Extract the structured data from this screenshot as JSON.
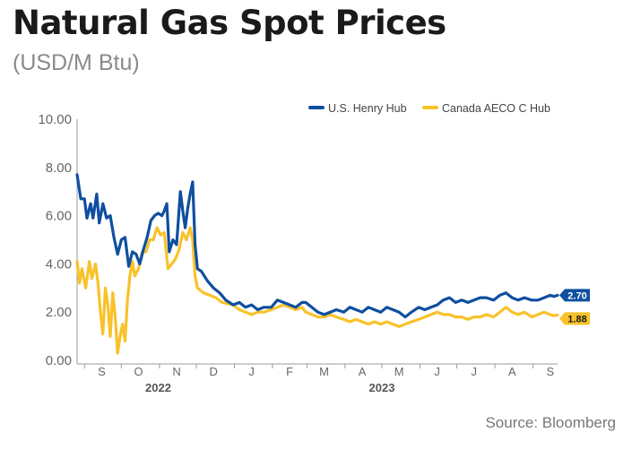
{
  "chart_data": {
    "type": "line",
    "title": "Natural Gas Spot Prices",
    "subtitle": "(USD/M Btu)",
    "source": "Source: Bloomberg",
    "ylim": [
      0,
      10
    ],
    "yticks": [
      "0.00",
      "2.00",
      "4.00",
      "6.00",
      "8.00",
      "10.00"
    ],
    "grid": false,
    "legend_position": "top-right",
    "months": [
      "S",
      "O",
      "N",
      "D",
      "J",
      "F",
      "M",
      "A",
      "M",
      "J",
      "J",
      "A",
      "S"
    ],
    "years": [
      "2022",
      "2023"
    ],
    "series": [
      {
        "name": "U.S. Henry Hub",
        "color": "#0f4fa0",
        "last_label": "2.70",
        "points": [
          [
            "2022-08-26",
            7.7
          ],
          [
            "2022-08-29",
            6.7
          ],
          [
            "2022-09-01",
            6.7
          ],
          [
            "2022-09-03",
            5.9
          ],
          [
            "2022-09-06",
            6.5
          ],
          [
            "2022-09-08",
            5.9
          ],
          [
            "2022-09-11",
            6.9
          ],
          [
            "2022-09-13",
            5.7
          ],
          [
            "2022-09-16",
            6.5
          ],
          [
            "2022-09-19",
            5.9
          ],
          [
            "2022-09-22",
            6.0
          ],
          [
            "2022-09-25",
            5.1
          ],
          [
            "2022-09-28",
            4.4
          ],
          [
            "2022-10-01",
            5.0
          ],
          [
            "2022-10-04",
            5.1
          ],
          [
            "2022-10-07",
            3.9
          ],
          [
            "2022-10-10",
            4.5
          ],
          [
            "2022-10-13",
            4.4
          ],
          [
            "2022-10-16",
            4.0
          ],
          [
            "2022-10-19",
            4.6
          ],
          [
            "2022-10-22",
            5.1
          ],
          [
            "2022-10-25",
            5.8
          ],
          [
            "2022-10-28",
            6.0
          ],
          [
            "2022-10-31",
            6.1
          ],
          [
            "2022-11-03",
            6.0
          ],
          [
            "2022-11-05",
            6.2
          ],
          [
            "2022-11-07",
            6.5
          ],
          [
            "2022-11-09",
            4.5
          ],
          [
            "2022-11-12",
            5.0
          ],
          [
            "2022-11-15",
            4.8
          ],
          [
            "2022-11-18",
            7.0
          ],
          [
            "2022-11-20",
            6.2
          ],
          [
            "2022-11-22",
            5.5
          ],
          [
            "2022-11-24",
            6.3
          ],
          [
            "2022-11-26",
            6.9
          ],
          [
            "2022-11-28",
            7.4
          ],
          [
            "2022-11-30",
            4.8
          ],
          [
            "2022-12-02",
            3.8
          ],
          [
            "2022-12-05",
            3.7
          ],
          [
            "2022-12-10",
            3.3
          ],
          [
            "2022-12-15",
            3.0
          ],
          [
            "2022-12-20",
            2.8
          ],
          [
            "2022-12-25",
            2.5
          ],
          [
            "2022-12-31",
            2.3
          ],
          [
            "2023-01-05",
            2.4
          ],
          [
            "2023-01-10",
            2.2
          ],
          [
            "2023-01-15",
            2.3
          ],
          [
            "2023-01-20",
            2.1
          ],
          [
            "2023-01-25",
            2.2
          ],
          [
            "2023-01-31",
            2.2
          ],
          [
            "2023-02-05",
            2.5
          ],
          [
            "2023-02-10",
            2.4
          ],
          [
            "2023-02-15",
            2.3
          ],
          [
            "2023-02-20",
            2.2
          ],
          [
            "2023-02-25",
            2.4
          ],
          [
            "2023-02-28",
            2.4
          ],
          [
            "2023-03-05",
            2.2
          ],
          [
            "2023-03-10",
            2.0
          ],
          [
            "2023-03-15",
            1.9
          ],
          [
            "2023-03-20",
            2.0
          ],
          [
            "2023-03-25",
            2.1
          ],
          [
            "2023-03-31",
            2.0
          ],
          [
            "2023-04-05",
            2.2
          ],
          [
            "2023-04-10",
            2.1
          ],
          [
            "2023-04-15",
            2.0
          ],
          [
            "2023-04-20",
            2.2
          ],
          [
            "2023-04-25",
            2.1
          ],
          [
            "2023-04-30",
            2.0
          ],
          [
            "2023-05-05",
            2.2
          ],
          [
            "2023-05-10",
            2.1
          ],
          [
            "2023-05-15",
            2.0
          ],
          [
            "2023-05-20",
            1.8
          ],
          [
            "2023-05-25",
            2.0
          ],
          [
            "2023-05-31",
            2.2
          ],
          [
            "2023-06-05",
            2.1
          ],
          [
            "2023-06-10",
            2.2
          ],
          [
            "2023-06-15",
            2.3
          ],
          [
            "2023-06-20",
            2.5
          ],
          [
            "2023-06-25",
            2.6
          ],
          [
            "2023-06-30",
            2.4
          ],
          [
            "2023-07-05",
            2.5
          ],
          [
            "2023-07-10",
            2.4
          ],
          [
            "2023-07-15",
            2.5
          ],
          [
            "2023-07-20",
            2.6
          ],
          [
            "2023-07-25",
            2.6
          ],
          [
            "2023-07-31",
            2.5
          ],
          [
            "2023-08-05",
            2.7
          ],
          [
            "2023-08-10",
            2.8
          ],
          [
            "2023-08-15",
            2.6
          ],
          [
            "2023-08-20",
            2.5
          ],
          [
            "2023-08-25",
            2.6
          ],
          [
            "2023-08-31",
            2.5
          ],
          [
            "2023-09-05",
            2.5
          ],
          [
            "2023-09-10",
            2.6
          ],
          [
            "2023-09-15",
            2.7
          ],
          [
            "2023-09-18",
            2.65
          ],
          [
            "2023-09-21",
            2.7
          ]
        ]
      },
      {
        "name": "Canada AECO C Hub",
        "color": "#f8c22a",
        "last_label": "1.88",
        "points": [
          [
            "2022-08-26",
            4.1
          ],
          [
            "2022-08-28",
            3.2
          ],
          [
            "2022-08-30",
            3.8
          ],
          [
            "2022-09-02",
            3.0
          ],
          [
            "2022-09-05",
            4.1
          ],
          [
            "2022-09-07",
            3.4
          ],
          [
            "2022-09-10",
            4.0
          ],
          [
            "2022-09-12",
            3.2
          ],
          [
            "2022-09-14",
            2.0
          ],
          [
            "2022-09-16",
            1.1
          ],
          [
            "2022-09-18",
            3.0
          ],
          [
            "2022-09-20",
            2.3
          ],
          [
            "2022-09-22",
            1.0
          ],
          [
            "2022-09-24",
            2.8
          ],
          [
            "2022-09-26",
            1.8
          ],
          [
            "2022-09-28",
            0.3
          ],
          [
            "2022-09-30",
            1.0
          ],
          [
            "2022-10-02",
            1.5
          ],
          [
            "2022-10-04",
            0.8
          ],
          [
            "2022-10-06",
            2.5
          ],
          [
            "2022-10-08",
            3.5
          ],
          [
            "2022-10-10",
            4.1
          ],
          [
            "2022-10-12",
            3.5
          ],
          [
            "2022-10-15",
            3.8
          ],
          [
            "2022-10-18",
            4.5
          ],
          [
            "2022-10-21",
            4.5
          ],
          [
            "2022-10-24",
            5.0
          ],
          [
            "2022-10-27",
            5.0
          ],
          [
            "2022-10-30",
            5.5
          ],
          [
            "2022-11-02",
            5.2
          ],
          [
            "2022-11-05",
            5.3
          ],
          [
            "2022-11-08",
            3.8
          ],
          [
            "2022-11-11",
            4.0
          ],
          [
            "2022-11-14",
            4.2
          ],
          [
            "2022-11-17",
            4.6
          ],
          [
            "2022-11-20",
            5.3
          ],
          [
            "2022-11-23",
            5.0
          ],
          [
            "2022-11-26",
            5.5
          ],
          [
            "2022-11-28",
            5.0
          ],
          [
            "2022-11-30",
            3.5
          ],
          [
            "2022-12-02",
            3.0
          ],
          [
            "2022-12-07",
            2.8
          ],
          [
            "2022-12-12",
            2.7
          ],
          [
            "2022-12-17",
            2.6
          ],
          [
            "2022-12-22",
            2.4
          ],
          [
            "2022-12-31",
            2.3
          ],
          [
            "2023-01-05",
            2.1
          ],
          [
            "2023-01-10",
            2.0
          ],
          [
            "2023-01-15",
            1.9
          ],
          [
            "2023-01-20",
            2.0
          ],
          [
            "2023-01-25",
            2.0
          ],
          [
            "2023-01-31",
            2.1
          ],
          [
            "2023-02-05",
            2.2
          ],
          [
            "2023-02-10",
            2.3
          ],
          [
            "2023-02-15",
            2.2
          ],
          [
            "2023-02-20",
            2.1
          ],
          [
            "2023-02-25",
            2.2
          ],
          [
            "2023-02-28",
            2.0
          ],
          [
            "2023-03-05",
            1.9
          ],
          [
            "2023-03-10",
            1.8
          ],
          [
            "2023-03-15",
            1.8
          ],
          [
            "2023-03-20",
            1.9
          ],
          [
            "2023-03-25",
            1.8
          ],
          [
            "2023-03-31",
            1.7
          ],
          [
            "2023-04-05",
            1.6
          ],
          [
            "2023-04-10",
            1.7
          ],
          [
            "2023-04-15",
            1.6
          ],
          [
            "2023-04-20",
            1.5
          ],
          [
            "2023-04-25",
            1.6
          ],
          [
            "2023-04-30",
            1.5
          ],
          [
            "2023-05-05",
            1.6
          ],
          [
            "2023-05-10",
            1.5
          ],
          [
            "2023-05-15",
            1.4
          ],
          [
            "2023-05-20",
            1.5
          ],
          [
            "2023-05-25",
            1.6
          ],
          [
            "2023-05-31",
            1.7
          ],
          [
            "2023-06-05",
            1.8
          ],
          [
            "2023-06-10",
            1.9
          ],
          [
            "2023-06-15",
            2.0
          ],
          [
            "2023-06-20",
            1.9
          ],
          [
            "2023-06-25",
            1.9
          ],
          [
            "2023-06-30",
            1.8
          ],
          [
            "2023-07-05",
            1.8
          ],
          [
            "2023-07-10",
            1.7
          ],
          [
            "2023-07-15",
            1.8
          ],
          [
            "2023-07-20",
            1.8
          ],
          [
            "2023-07-25",
            1.9
          ],
          [
            "2023-07-31",
            1.8
          ],
          [
            "2023-08-05",
            2.0
          ],
          [
            "2023-08-10",
            2.2
          ],
          [
            "2023-08-15",
            2.0
          ],
          [
            "2023-08-20",
            1.9
          ],
          [
            "2023-08-25",
            2.0
          ],
          [
            "2023-08-31",
            1.8
          ],
          [
            "2023-09-05",
            1.9
          ],
          [
            "2023-09-10",
            2.0
          ],
          [
            "2023-09-15",
            1.9
          ],
          [
            "2023-09-18",
            1.85
          ],
          [
            "2023-09-21",
            1.88
          ]
        ]
      }
    ]
  }
}
